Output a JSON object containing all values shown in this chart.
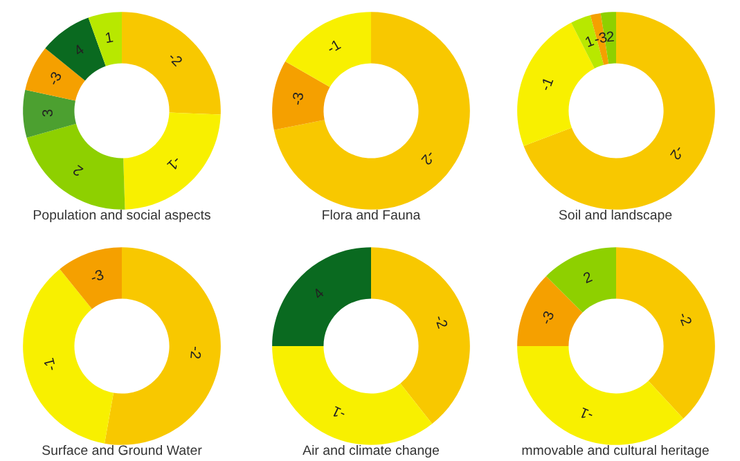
{
  "chart_data": [
    {
      "type": "donut",
      "title": "Population and social aspects",
      "categories": [
        "-2",
        "-1",
        "2",
        "3",
        "-3",
        "4",
        "1"
      ],
      "values": [
        25.6,
        23.9,
        21.1,
        7.8,
        7.5,
        8.6,
        5.5
      ],
      "colors": [
        "#f8c800",
        "#f8f000",
        "#8ed000",
        "#4ca030",
        "#f5a000",
        "#0a6a20",
        "#b8e800"
      ]
    },
    {
      "type": "donut",
      "title": "Flora and Fauna",
      "categories": [
        "-2",
        "-3",
        "-1"
      ],
      "values": [
        71.9,
        11.4,
        16.7
      ],
      "colors": [
        "#f8c800",
        "#f5a000",
        "#f8f000"
      ]
    },
    {
      "type": "donut",
      "title": "Soil and landscape",
      "categories": [
        "-2",
        "-1",
        "1",
        "-3",
        "2"
      ],
      "values": [
        69.2,
        23.3,
        3.3,
        1.7,
        2.5
      ],
      "colors": [
        "#f8c800",
        "#f8f000",
        "#b8e800",
        "#f5a000",
        "#8ed000"
      ]
    },
    {
      "type": "donut",
      "title": "Surface and Ground Water",
      "categories": [
        "-2",
        "-1",
        "-3"
      ],
      "values": [
        52.8,
        36.4,
        10.8
      ],
      "colors": [
        "#f8c800",
        "#f8f000",
        "#f5a000"
      ]
    },
    {
      "type": "donut",
      "title": "Air and climate change",
      "categories": [
        "-2",
        "-1",
        "4"
      ],
      "values": [
        39.4,
        35.6,
        25
      ],
      "colors": [
        "#f8c800",
        "#f8f000",
        "#0a6a20"
      ]
    },
    {
      "type": "donut",
      "title": "mmovable and cultural heritage",
      "categories": [
        "-2",
        "-1",
        "-3",
        "2"
      ],
      "values": [
        38.1,
        36.9,
        12.5,
        12.5
      ],
      "colors": [
        "#f8c800",
        "#f8f000",
        "#f5a000",
        "#8ed000"
      ]
    }
  ]
}
